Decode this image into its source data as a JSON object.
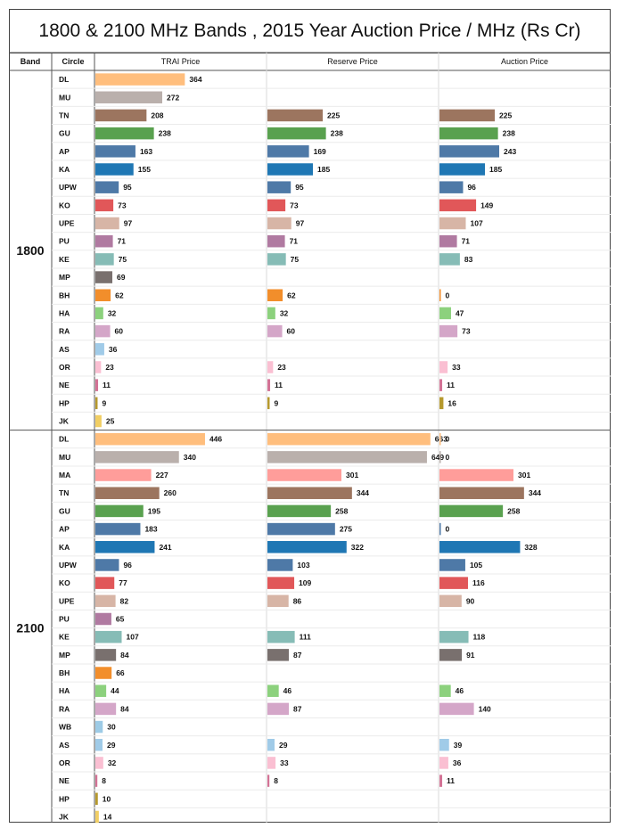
{
  "title": "1800 & 2100 MHz  Bands , 2015 Year Auction Price / MHz (Rs Cr)",
  "chart_data": {
    "type": "bar",
    "title": "1800 & 2100 MHz  Bands , 2015 Year Auction Price / MHz (Rs Cr)",
    "headers": {
      "band": "Band",
      "circle": "Circle"
    },
    "measures": [
      "TRAI Price",
      "Reserve Price",
      "Auction Price"
    ],
    "scale_max": 700,
    "colors": {
      "DL": "#FFBE7D",
      "MU": "#BAB0AC",
      "MA": "#FF9D9A",
      "TN": "#9C755F",
      "GU": "#59A14F",
      "AP": "#4E79A7",
      "KA": "#1F77B4",
      "UPW": "#4E79A7",
      "KO": "#E15759",
      "UPE": "#D7B5A6",
      "PU": "#B07AA1",
      "KE": "#86BCB6",
      "MP": "#79706E",
      "BH": "#F28E2B",
      "HA": "#8CD17D",
      "RA": "#D4A6C8",
      "WB": "#9DCBE6",
      "AS": "#A0CBE8",
      "OR": "#FABFD2",
      "NE": "#D37295",
      "HP": "#B6992D",
      "JK": "#F1CE63"
    },
    "bands": [
      {
        "name": "1800",
        "rows": [
          {
            "circle": "DL",
            "values": [
              364,
              null,
              null
            ]
          },
          {
            "circle": "MU",
            "values": [
              272,
              null,
              null
            ]
          },
          {
            "circle": "TN",
            "values": [
              208,
              225,
              225
            ]
          },
          {
            "circle": "GU",
            "values": [
              238,
              238,
              238
            ]
          },
          {
            "circle": "AP",
            "values": [
              163,
              169,
              243
            ]
          },
          {
            "circle": "KA",
            "values": [
              155,
              185,
              185
            ]
          },
          {
            "circle": "UPW",
            "values": [
              95,
              95,
              96
            ]
          },
          {
            "circle": "KO",
            "values": [
              73,
              73,
              149
            ]
          },
          {
            "circle": "UPE",
            "values": [
              97,
              97,
              107
            ]
          },
          {
            "circle": "PU",
            "values": [
              71,
              71,
              71
            ]
          },
          {
            "circle": "KE",
            "values": [
              75,
              75,
              83
            ]
          },
          {
            "circle": "MP",
            "values": [
              69,
              null,
              null
            ]
          },
          {
            "circle": "BH",
            "values": [
              62,
              62,
              0
            ]
          },
          {
            "circle": "HA",
            "values": [
              32,
              32,
              47
            ]
          },
          {
            "circle": "RA",
            "values": [
              60,
              60,
              73
            ]
          },
          {
            "circle": "AS",
            "values": [
              36,
              null,
              null
            ]
          },
          {
            "circle": "OR",
            "values": [
              23,
              23,
              33
            ]
          },
          {
            "circle": "NE",
            "values": [
              11,
              11,
              11
            ]
          },
          {
            "circle": "HP",
            "values": [
              9,
              9,
              16
            ]
          },
          {
            "circle": "JK",
            "values": [
              25,
              null,
              null
            ]
          }
        ]
      },
      {
        "name": "2100",
        "rows": [
          {
            "circle": "DL",
            "values": [
              446,
              663,
              0
            ]
          },
          {
            "circle": "MU",
            "values": [
              340,
              649,
              0
            ]
          },
          {
            "circle": "MA",
            "values": [
              227,
              301,
              301
            ]
          },
          {
            "circle": "TN",
            "values": [
              260,
              344,
              344
            ]
          },
          {
            "circle": "GU",
            "values": [
              195,
              258,
              258
            ]
          },
          {
            "circle": "AP",
            "values": [
              183,
              275,
              0
            ]
          },
          {
            "circle": "KA",
            "values": [
              241,
              322,
              328
            ]
          },
          {
            "circle": "UPW",
            "values": [
              96,
              103,
              105
            ]
          },
          {
            "circle": "KO",
            "values": [
              77,
              109,
              116
            ]
          },
          {
            "circle": "UPE",
            "values": [
              82,
              86,
              90
            ]
          },
          {
            "circle": "PU",
            "values": [
              65,
              null,
              null
            ]
          },
          {
            "circle": "KE",
            "values": [
              107,
              111,
              118
            ]
          },
          {
            "circle": "MP",
            "values": [
              84,
              87,
              91
            ]
          },
          {
            "circle": "BH",
            "values": [
              66,
              null,
              null
            ]
          },
          {
            "circle": "HA",
            "values": [
              44,
              46,
              46
            ]
          },
          {
            "circle": "RA",
            "values": [
              84,
              87,
              140
            ]
          },
          {
            "circle": "WB",
            "values": [
              30,
              null,
              null
            ]
          },
          {
            "circle": "AS",
            "values": [
              29,
              29,
              39
            ]
          },
          {
            "circle": "OR",
            "values": [
              32,
              33,
              36
            ]
          },
          {
            "circle": "NE",
            "values": [
              8,
              8,
              11
            ]
          },
          {
            "circle": "HP",
            "values": [
              10,
              null,
              null
            ]
          },
          {
            "circle": "JK",
            "values": [
              14,
              null,
              null
            ]
          }
        ]
      }
    ]
  }
}
